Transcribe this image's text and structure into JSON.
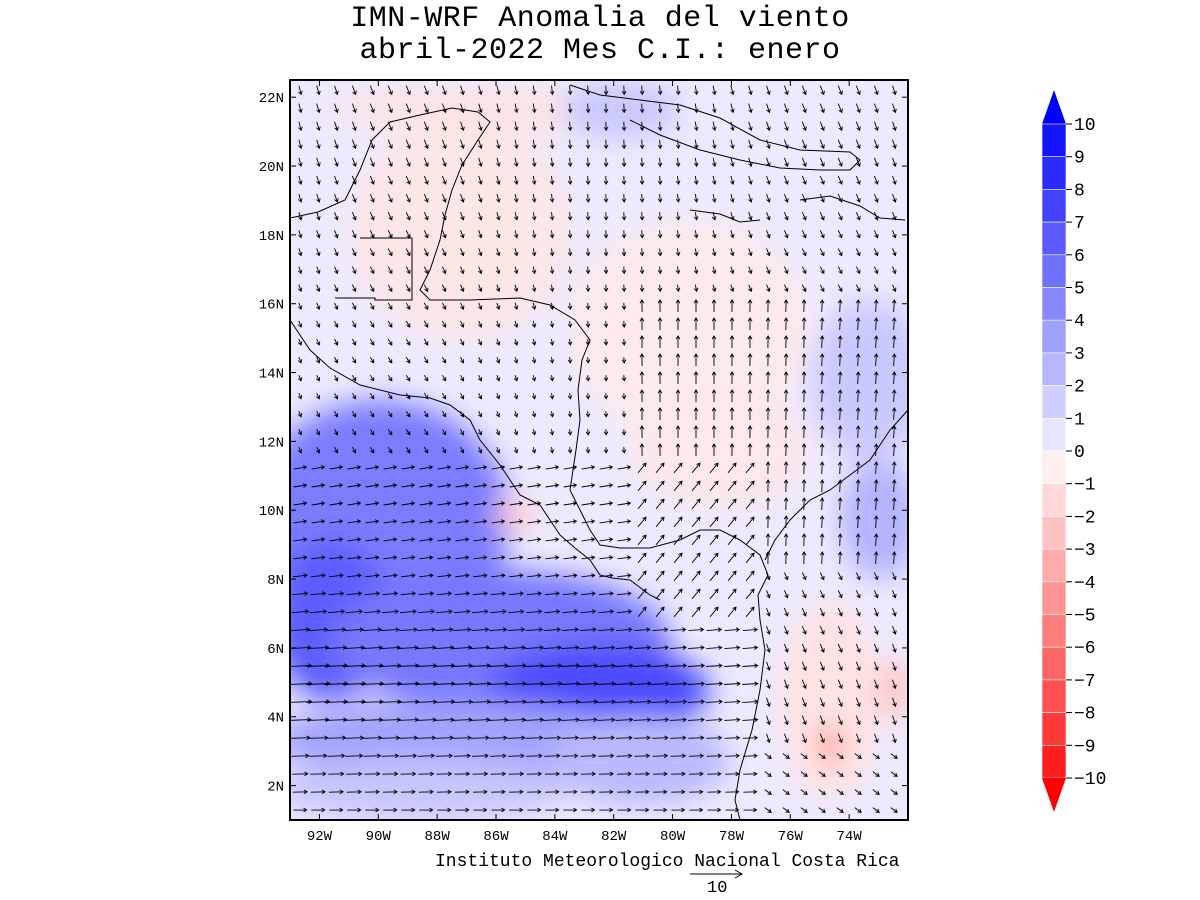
{
  "title": {
    "line1": "IMN-WRF Anomalia del viento",
    "line2": "abril-2022 Mes C.I.: enero"
  },
  "credit": "Instituto Meteorologico Nacional Costa Rica",
  "reference_vector": {
    "label": "10",
    "magnitude": 10
  },
  "axes": {
    "lat_ticks": [
      "2N",
      "4N",
      "6N",
      "8N",
      "10N",
      "12N",
      "14N",
      "16N",
      "18N",
      "20N",
      "22N"
    ],
    "lat_values": [
      2,
      4,
      6,
      8,
      10,
      12,
      14,
      16,
      18,
      20,
      22
    ],
    "lon_ticks": [
      "92W",
      "90W",
      "88W",
      "86W",
      "84W",
      "82W",
      "80W",
      "78W",
      "76W",
      "74W"
    ],
    "lon_values": [
      -92,
      -90,
      -88,
      -86,
      -84,
      -82,
      -80,
      -78,
      -76,
      -74
    ],
    "lat_range": [
      1.0,
      22.5
    ],
    "lon_range": [
      -93.0,
      -72.0
    ]
  },
  "colorbar": {
    "labels": [
      "10",
      "9",
      "8",
      "7",
      "6",
      "5",
      "4",
      "3",
      "2",
      "1",
      "0",
      "−1",
      "−2",
      "−3",
      "−4",
      "−5",
      "−6",
      "−7",
      "−8",
      "−9",
      "−10"
    ],
    "colors_top_to_bottom": [
      "#1414ff",
      "#2b2bff",
      "#4343ff",
      "#5a5aff",
      "#7171ff",
      "#8888ff",
      "#a0a0ff",
      "#b7b7ff",
      "#cfcfff",
      "#e6e6ff",
      "#fff0f0",
      "#ffd9d9",
      "#ffc2c2",
      "#ffabab",
      "#ff9494",
      "#ff7d7d",
      "#ff6666",
      "#ff4f4f",
      "#ff3838",
      "#ff1f1f"
    ],
    "arrow_top_color": "#0000ff",
    "arrow_bottom_color": "#ff0000"
  }
}
